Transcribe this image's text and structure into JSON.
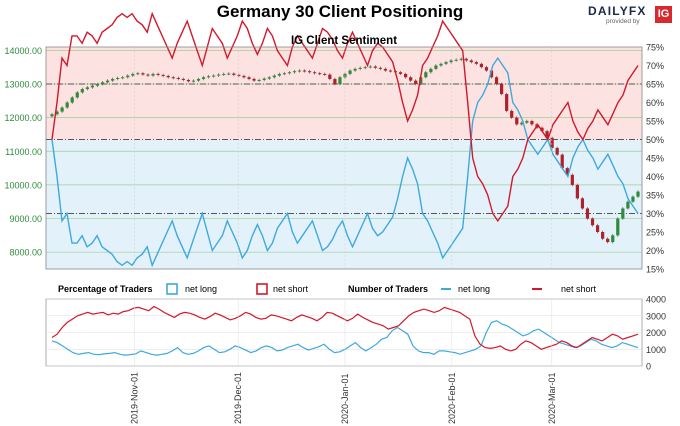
{
  "header": {
    "title": "Germany 30 Client Positioning",
    "brand_daily": "DAILY",
    "brand_fx": "FX",
    "brand_tagline": "provided by",
    "brand_ig": "IG"
  },
  "colors": {
    "long": "#3fa9dc",
    "short": "#d2192c",
    "candle_up": "#2e8b3a",
    "candle_down": "#b11f2a",
    "bg_upper": "#fde2e2",
    "bg_lower": "#e3f1fb"
  },
  "chart_data": [
    {
      "type": "line",
      "title": "IG Client Sentiment",
      "ylabel_left_ticks": [
        "8000.00",
        "9000.00",
        "10000.00",
        "11000.00",
        "12000.00",
        "13000.00",
        "14000.00"
      ],
      "ylabel_right_ticks": [
        "15%",
        "20%",
        "25%",
        "30%",
        "35%",
        "40%",
        "45%",
        "50%",
        "55%",
        "60%",
        "65%",
        "70%",
        "75%"
      ],
      "ylim_left": [
        7500,
        14100
      ],
      "ylim_right": [
        15,
        75
      ],
      "reference_lines_pct": [
        30,
        50,
        65
      ],
      "x_range_dates": [
        "2019-10-08",
        "2020-03-26"
      ],
      "price_candles_close": [
        12100,
        12180,
        12300,
        12450,
        12600,
        12750,
        12850,
        12900,
        12950,
        13000,
        13050,
        13100,
        13150,
        13180,
        13200,
        13250,
        13300,
        13320,
        13280,
        13250,
        13300,
        13270,
        13240,
        13200,
        13180,
        13150,
        13120,
        13080,
        13100,
        13150,
        13200,
        13230,
        13250,
        13280,
        13300,
        13310,
        13270,
        13240,
        13200,
        13150,
        13100,
        13120,
        13160,
        13200,
        13250,
        13300,
        13320,
        13350,
        13380,
        13400,
        13380,
        13350,
        13320,
        13300,
        13280,
        13150,
        13000,
        13200,
        13300,
        13400,
        13450,
        13480,
        13500,
        13520,
        13480,
        13450,
        13400,
        13380,
        13350,
        13300,
        13200,
        13100,
        13000,
        13200,
        13350,
        13450,
        13550,
        13600,
        13650,
        13700,
        13720,
        13750,
        13700,
        13650,
        13600,
        13500,
        13400,
        13200,
        13000,
        12700,
        12200,
        12000,
        11800,
        11850,
        11900,
        11800,
        11700,
        11600,
        11400,
        11100,
        10900,
        10500,
        10300,
        10000,
        9600,
        9300,
        9000,
        8800,
        8600,
        8400,
        8300,
        8500,
        9000,
        9300,
        9500,
        9650,
        9800
      ]
    },
    {
      "type": "line",
      "title": "Percentage of Traders",
      "series": [
        {
          "name": "net long",
          "values": [
            50,
            40,
            28,
            30,
            22,
            22,
            24,
            21,
            22,
            24,
            21,
            20,
            19,
            17,
            16,
            17,
            16,
            18,
            19,
            21,
            16,
            19,
            22,
            25,
            28,
            24,
            21,
            18,
            22,
            26,
            30,
            25,
            20,
            22,
            24,
            28,
            25,
            22,
            18,
            20,
            24,
            27,
            24,
            20,
            22,
            26,
            28,
            30,
            25,
            22,
            24,
            26,
            28,
            24,
            20,
            21,
            23,
            26,
            28,
            24,
            21,
            24,
            27,
            30,
            26,
            24,
            25,
            27,
            29,
            34,
            40,
            45,
            42,
            38,
            30,
            28,
            25,
            22,
            18,
            20,
            22,
            24,
            26,
            40,
            55,
            60,
            62,
            65,
            70,
            72,
            70,
            68,
            60,
            58,
            55,
            50,
            48,
            46,
            48,
            50,
            46,
            44,
            42,
            40,
            45,
            48,
            50,
            47,
            45,
            42,
            44,
            46,
            43,
            40,
            38,
            34,
            32,
            30
          ]
        }
      ]
    },
    {
      "type": "line",
      "title": "Number of Traders",
      "ylabel_right_ticks": [
        "0",
        "1000",
        "2000",
        "3000",
        "4000"
      ],
      "ylim_right": [
        0,
        4000
      ],
      "series": [
        {
          "name": "net long",
          "values": [
            1500,
            1400,
            1200,
            1000,
            800,
            700,
            750,
            800,
            700,
            680,
            720,
            750,
            800,
            700,
            650,
            680,
            720,
            900,
            800,
            700,
            650,
            700,
            750,
            900,
            1100,
            800,
            700,
            750,
            900,
            1100,
            1200,
            1000,
            800,
            850,
            1000,
            1200,
            1100,
            950,
            800,
            900,
            1100,
            1200,
            1100,
            900,
            950,
            1100,
            1200,
            1300,
            1100,
            950,
            1050,
            1150,
            1300,
            1000,
            800,
            850,
            1000,
            1200,
            1400,
            1100,
            900,
            1100,
            1300,
            1600,
            1700,
            2100,
            2300,
            2100,
            1900,
            1200,
            900,
            800,
            800,
            700,
            900,
            900,
            850,
            800,
            700,
            800,
            900,
            1000,
            1200,
            2000,
            2600,
            2700,
            2500,
            2400,
            2200,
            2000,
            1800,
            1900,
            2100,
            2200,
            2000,
            1800,
            1600,
            1400,
            1300,
            1200,
            1100,
            1200,
            1400,
            1600,
            1500,
            1300,
            1200,
            1100,
            1200,
            1400,
            1300,
            1200,
            1100
          ]
        },
        {
          "name": "net short",
          "values": [
            1700,
            1900,
            2300,
            2600,
            2800,
            3000,
            3100,
            3200,
            3100,
            3150,
            3200,
            3050,
            3150,
            3100,
            3250,
            3300,
            3450,
            3500,
            3400,
            3300,
            3550,
            3400,
            3200,
            3050,
            2900,
            3100,
            3200,
            3150,
            3050,
            2900,
            2800,
            2950,
            3150,
            3050,
            2900,
            2750,
            2850,
            3000,
            3200,
            3100,
            2900,
            2800,
            2850,
            3050,
            3000,
            2900,
            2800,
            2700,
            2900,
            3050,
            2950,
            2850,
            2700,
            2900,
            3200,
            3150,
            3000,
            2850,
            2700,
            2850,
            3100,
            2900,
            2750,
            2600,
            2500,
            2400,
            2200,
            2300,
            2400,
            2700,
            3000,
            3200,
            3300,
            3400,
            3300,
            3200,
            3300,
            3500,
            3400,
            3300,
            3200,
            3000,
            2800,
            1800,
            1300,
            1100,
            1050,
            1100,
            1200,
            1000,
            900,
            1000,
            1300,
            1500,
            1400,
            1200,
            1000,
            1100,
            1200,
            1300,
            1500,
            1400,
            1200,
            1100,
            1300,
            1500,
            1700,
            1600,
            1500,
            1700,
            1900,
            1800,
            1600,
            1700,
            1800,
            1900
          ]
        }
      ]
    }
  ],
  "x_axis": {
    "ticks": [
      "2019-Nov-01",
      "2019-Dec-01",
      "2020-Jan-01",
      "2020-Feb-01",
      "2020-Mar-01"
    ]
  },
  "legend": {
    "pct_title": "Percentage of Traders",
    "pct_long": "net long",
    "pct_short": "net short",
    "num_title": "Number of Traders",
    "num_long": "net long",
    "num_short": "net short"
  }
}
